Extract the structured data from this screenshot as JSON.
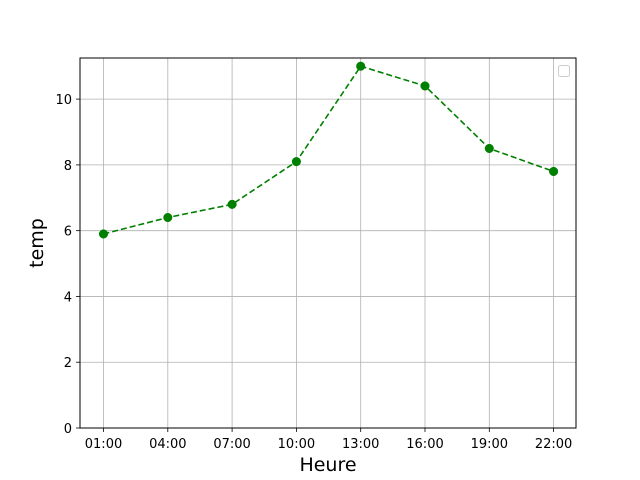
{
  "chart_data": {
    "type": "line",
    "title": "",
    "xlabel": "Heure",
    "ylabel": "temp",
    "categories": [
      "01:00",
      "04:00",
      "07:00",
      "10:00",
      "13:00",
      "16:00",
      "19:00",
      "22:00"
    ],
    "series": [
      {
        "values": [
          5.9,
          6.4,
          6.8,
          8.1,
          11.0,
          10.4,
          8.5,
          7.8
        ],
        "color": "#008000",
        "line_style": "dashed",
        "marker": "circle"
      }
    ],
    "ylim": [
      0,
      11.25
    ],
    "yticks": [
      0,
      2,
      4,
      6,
      8,
      10
    ],
    "grid": true,
    "legend": "top-right, empty"
  }
}
